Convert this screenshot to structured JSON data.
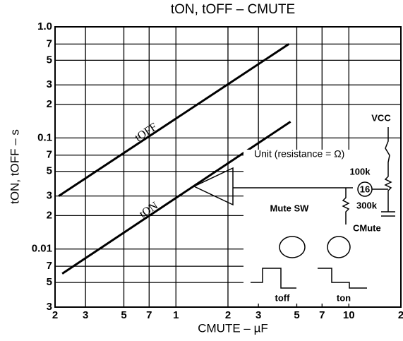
{
  "chart_data": {
    "type": "line",
    "title": "tON, tOFF – CMUTE",
    "x_label": "CMUTE – µF",
    "y_label": "tON, tOFF – s",
    "xscale": "log",
    "yscale": "log",
    "grid": true,
    "xlim": [
      0.2,
      20
    ],
    "xticks": [
      {
        "value": 0.2,
        "label": "2"
      },
      {
        "value": 0.3,
        "label": "3"
      },
      {
        "value": 0.5,
        "label": "5"
      },
      {
        "value": 0.7,
        "label": "7"
      },
      1,
      2,
      3,
      5,
      7,
      10,
      {
        "value": 20,
        "label": "2"
      }
    ],
    "ylim": [
      0.003,
      1.0
    ],
    "yticks": [
      {
        "value": 1.0,
        "label": "1.0"
      },
      {
        "value": 0.7,
        "label": "7"
      },
      {
        "value": 0.5,
        "label": "5"
      },
      {
        "value": 0.3,
        "label": "3"
      },
      {
        "value": 0.2,
        "label": "2"
      },
      0.1,
      {
        "value": 0.07,
        "label": "7"
      },
      {
        "value": 0.05,
        "label": "5"
      },
      {
        "value": 0.03,
        "label": "3"
      },
      {
        "value": 0.02,
        "label": "2"
      },
      0.01,
      {
        "value": 0.007,
        "label": "7"
      },
      {
        "value": 0.005,
        "label": "5"
      },
      {
        "value": 0.003,
        "label": "3"
      }
    ],
    "series": [
      {
        "name": "tOFF",
        "color": "#000000",
        "x": [
          0.21,
          4.5
        ],
        "values": [
          0.03,
          0.7
        ]
      },
      {
        "name": "tON",
        "color": "#000000",
        "x": [
          0.22,
          4.6
        ],
        "values": [
          0.006,
          0.14
        ]
      }
    ],
    "annotations": [
      "Unit (resistance = Ω)",
      "VCC",
      "100k",
      "16",
      "Mute SW",
      "300k",
      "CMute",
      "toff",
      "ton"
    ]
  }
}
